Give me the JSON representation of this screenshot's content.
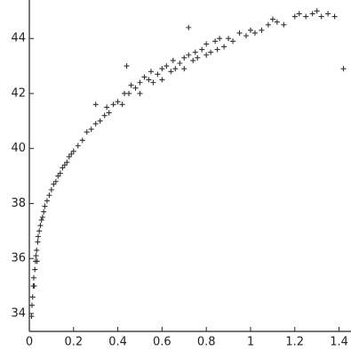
{
  "chart_data": {
    "type": "scatter",
    "color": "#333333",
    "xlim": [
      0,
      1.45
    ],
    "ylim": [
      33.35,
      45.4
    ],
    "xticks": [
      {
        "value": 0,
        "label": "0"
      },
      0.2,
      0.4,
      0.6,
      0.8,
      1,
      1.2,
      1.4
    ],
    "yticks": [
      34,
      36,
      38,
      40,
      42,
      44
    ],
    "x": [
      0.01,
      0.012,
      0.015,
      0.018,
      0.02,
      0.022,
      0.025,
      0.028,
      0.03,
      0.033,
      0.035,
      0.038,
      0.04,
      0.045,
      0.05,
      0.055,
      0.06,
      0.065,
      0.07,
      0.08,
      0.09,
      0.1,
      0.11,
      0.12,
      0.13,
      0.14,
      0.15,
      0.16,
      0.17,
      0.18,
      0.19,
      0.2,
      0.22,
      0.24,
      0.26,
      0.28,
      0.3,
      0.32,
      0.34,
      0.35,
      0.36,
      0.38,
      0.4,
      0.42,
      0.43,
      0.45,
      0.46,
      0.48,
      0.5,
      0.5,
      0.52,
      0.54,
      0.55,
      0.56,
      0.58,
      0.6,
      0.6,
      0.62,
      0.64,
      0.65,
      0.66,
      0.68,
      0.7,
      0.7,
      0.72,
      0.74,
      0.75,
      0.76,
      0.78,
      0.8,
      0.8,
      0.82,
      0.84,
      0.85,
      0.86,
      0.88,
      0.9,
      0.92,
      0.95,
      0.98,
      1.0,
      1.02,
      1.05,
      1.08,
      1.1,
      1.12,
      1.15,
      1.2,
      1.22,
      1.25,
      1.28,
      1.3,
      1.32,
      1.35,
      1.38,
      1.42,
      0.44,
      0.72,
      0.3
    ],
    "y": [
      33.9,
      34.3,
      34.6,
      35.0,
      35.3,
      35.0,
      35.6,
      35.9,
      36.1,
      36.3,
      35.9,
      36.6,
      36.8,
      37.0,
      37.2,
      37.4,
      37.5,
      37.7,
      37.9,
      38.1,
      38.3,
      38.5,
      38.7,
      38.8,
      39.0,
      39.1,
      39.3,
      39.4,
      39.5,
      39.7,
      39.8,
      39.9,
      40.1,
      40.3,
      40.6,
      40.7,
      40.9,
      41.0,
      41.2,
      41.5,
      41.3,
      41.6,
      41.7,
      41.6,
      42.0,
      42.0,
      42.3,
      42.2,
      42.4,
      42.0,
      42.6,
      42.5,
      42.8,
      42.4,
      42.7,
      42.9,
      42.5,
      43.0,
      42.8,
      43.2,
      42.9,
      43.1,
      43.3,
      42.9,
      43.4,
      43.2,
      43.5,
      43.3,
      43.6,
      43.4,
      43.8,
      43.5,
      43.9,
      43.6,
      44.0,
      43.7,
      44.0,
      43.9,
      44.2,
      44.1,
      44.3,
      44.2,
      44.3,
      44.5,
      44.7,
      44.6,
      44.5,
      44.8,
      44.9,
      44.8,
      44.9,
      45.0,
      44.8,
      44.9,
      44.8,
      42.9,
      43.0,
      44.4,
      41.6
    ]
  }
}
